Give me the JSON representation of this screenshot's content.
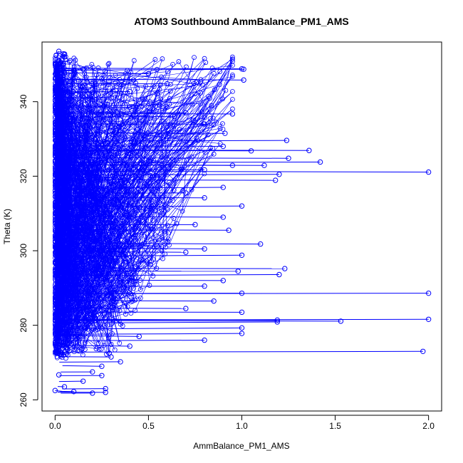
{
  "chart_data": {
    "type": "scatter",
    "title": "ATOM3 Southbound AmmBalance_PM1_AMS",
    "xlabel": "AmmBalance_PM1_AMS",
    "ylabel": "Theta (K)",
    "xlim": [
      -0.07,
      2.07
    ],
    "ylim": [
      257,
      356
    ],
    "xticks": [
      0.0,
      0.5,
      1.0,
      1.5,
      2.0
    ],
    "xtick_labels": [
      "0.0",
      "0.5",
      "1.0",
      "1.5",
      "2.0"
    ],
    "yticks": [
      260,
      280,
      300,
      320,
      340
    ],
    "ytick_labels": [
      "260",
      "280",
      "300",
      "320",
      "340"
    ],
    "grid": false,
    "legend": "none",
    "color": "#0000ff",
    "marker": "open-circle",
    "connected": true,
    "series": [
      {
        "values_note": "",
        "points": [
          [
            0.02,
            353.5
          ],
          [
            0.05,
            352.0
          ],
          [
            0.08,
            351.0
          ],
          [
            0.03,
            350.5
          ],
          [
            1.0,
            348.8
          ],
          [
            0.15,
            348.7
          ],
          [
            1.01,
            348.7
          ],
          [
            0.1,
            348.3
          ],
          [
            0.5,
            347.5
          ],
          [
            1.01,
            345.8
          ],
          [
            0.42,
            345.8
          ],
          [
            0.6,
            344.8
          ],
          [
            0.4,
            342.7
          ],
          [
            0.2,
            342.5
          ],
          [
            0.3,
            341.0
          ],
          [
            0.56,
            339.1
          ],
          [
            0.4,
            338.5
          ],
          [
            0.7,
            337.0
          ],
          [
            0.95,
            336.7
          ],
          [
            0.64,
            336.0
          ],
          [
            0.8,
            334.0
          ],
          [
            0.91,
            331.5
          ],
          [
            1.24,
            329.6
          ],
          [
            0.9,
            328.0
          ],
          [
            1.36,
            326.9
          ],
          [
            1.05,
            326.8
          ],
          [
            1.25,
            324.8
          ],
          [
            1.42,
            323.8
          ],
          [
            0.95,
            322.9
          ],
          [
            1.12,
            322.9
          ],
          [
            2.0,
            321.1
          ],
          [
            1.2,
            320.5
          ],
          [
            0.8,
            321.7
          ],
          [
            1.18,
            318.9
          ],
          [
            0.9,
            317.0
          ],
          [
            0.7,
            315.5
          ],
          [
            0.8,
            314.2
          ],
          [
            1.0,
            312.0
          ],
          [
            0.9,
            309.0
          ],
          [
            0.75,
            307.0
          ],
          [
            0.93,
            305.5
          ],
          [
            1.1,
            301.8
          ],
          [
            0.8,
            300.5
          ],
          [
            0.7,
            299.6
          ],
          [
            1.0,
            298.8
          ],
          [
            1.23,
            295.2
          ],
          [
            0.98,
            294.5
          ],
          [
            1.2,
            293.6
          ],
          [
            0.9,
            292.0
          ],
          [
            0.8,
            290.5
          ],
          [
            2.0,
            288.6
          ],
          [
            1.0,
            288.6
          ],
          [
            0.85,
            286.5
          ],
          [
            0.7,
            284.5
          ],
          [
            1.0,
            283.5
          ],
          [
            1.19,
            281.4
          ],
          [
            2.0,
            281.6
          ],
          [
            1.53,
            281.1
          ],
          [
            1.19,
            280.9
          ],
          [
            1.0,
            279.3
          ],
          [
            1.0,
            277.8
          ],
          [
            0.45,
            277.0
          ],
          [
            0.8,
            276.0
          ],
          [
            0.4,
            274.4
          ],
          [
            1.97,
            273.0
          ],
          [
            0.3,
            271.5
          ],
          [
            0.35,
            270.2
          ],
          [
            0.25,
            269.0
          ],
          [
            0.2,
            267.5
          ],
          [
            0.25,
            266.5
          ],
          [
            0.15,
            265.0
          ],
          [
            0.27,
            263.0
          ],
          [
            0.27,
            262.0
          ],
          [
            0.2,
            261.8
          ],
          [
            0.0,
            262.5
          ],
          [
            0.05,
            263.5
          ],
          [
            0.1,
            262.2
          ],
          [
            0.02,
            266.7
          ]
        ]
      }
    ]
  }
}
